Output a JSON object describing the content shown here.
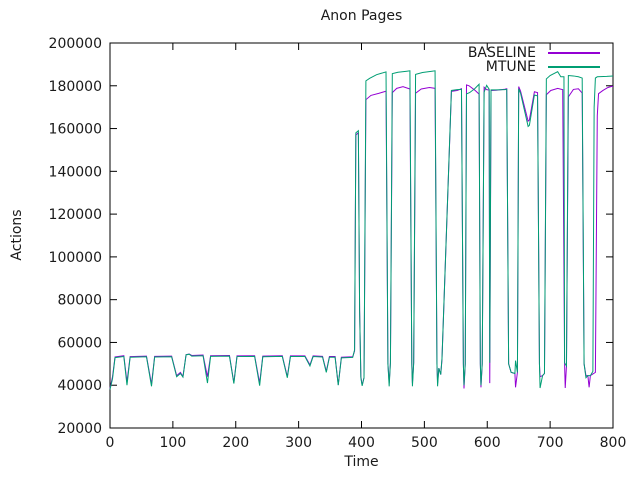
{
  "chart_data": {
    "type": "line",
    "title": "Anon Pages",
    "xlabel": "Time",
    "ylabel": "Actions",
    "xlim": [
      0,
      800
    ],
    "ylim": [
      20000,
      200000
    ],
    "x_ticks": [
      0,
      100,
      200,
      300,
      400,
      500,
      600,
      700,
      800
    ],
    "y_ticks": [
      20000,
      40000,
      60000,
      80000,
      100000,
      120000,
      140000,
      160000,
      180000,
      200000
    ],
    "grid": false,
    "legend_position": "top-right-inside",
    "axis_color": "#000000",
    "text_color": "#1a1a1a",
    "series": [
      {
        "name": "BASELINE",
        "color": "#9400D3",
        "points": [
          [
            0,
            38500
          ],
          [
            4,
            44000
          ],
          [
            8,
            53200
          ],
          [
            22,
            53800
          ],
          [
            27,
            41500
          ],
          [
            32,
            53400
          ],
          [
            58,
            53600
          ],
          [
            66,
            40500
          ],
          [
            71,
            53500
          ],
          [
            98,
            53600
          ],
          [
            106,
            44500
          ],
          [
            112,
            46000
          ],
          [
            116,
            44000
          ],
          [
            121,
            54300
          ],
          [
            126,
            54600
          ],
          [
            130,
            53900
          ],
          [
            148,
            54100
          ],
          [
            155,
            44000
          ],
          [
            160,
            53800
          ],
          [
            190,
            53900
          ],
          [
            197,
            41200
          ],
          [
            202,
            53700
          ],
          [
            230,
            53800
          ],
          [
            238,
            41000
          ],
          [
            243,
            53600
          ],
          [
            274,
            53800
          ],
          [
            282,
            44000
          ],
          [
            287,
            53700
          ],
          [
            310,
            53700
          ],
          [
            318,
            49500
          ],
          [
            323,
            53700
          ],
          [
            338,
            53500
          ],
          [
            344,
            46500
          ],
          [
            349,
            53400
          ],
          [
            358,
            53400
          ],
          [
            363,
            40200
          ],
          [
            368,
            53100
          ],
          [
            386,
            53300
          ],
          [
            389,
            56000
          ],
          [
            391,
            157000
          ],
          [
            395,
            158000
          ],
          [
            397,
            75000
          ],
          [
            399,
            44000
          ],
          [
            401,
            40000
          ],
          [
            404,
            43500
          ],
          [
            407,
            173500
          ],
          [
            415,
            175500
          ],
          [
            428,
            176500
          ],
          [
            439,
            177500
          ],
          [
            442,
            50000
          ],
          [
            444,
            41000
          ],
          [
            446,
            50500
          ],
          [
            449,
            176800
          ],
          [
            456,
            178800
          ],
          [
            466,
            179600
          ],
          [
            477,
            178500
          ],
          [
            480,
            50000
          ],
          [
            481,
            41000
          ],
          [
            483,
            50500
          ],
          [
            486,
            176500
          ],
          [
            495,
            178500
          ],
          [
            508,
            179200
          ],
          [
            517,
            178800
          ],
          [
            520,
            50000
          ],
          [
            521,
            41000
          ],
          [
            523,
            48000
          ],
          [
            526,
            45000
          ],
          [
            528,
            52000
          ],
          [
            543,
            177400
          ],
          [
            552,
            177800
          ],
          [
            559,
            178600
          ],
          [
            562,
            50000
          ],
          [
            563,
            38500
          ],
          [
            565,
            50000
          ],
          [
            567,
            180400
          ],
          [
            571,
            180000
          ],
          [
            580,
            178000
          ],
          [
            587,
            176100
          ],
          [
            589,
            50000
          ],
          [
            590,
            39000
          ],
          [
            592,
            50000
          ],
          [
            595,
            179300
          ],
          [
            599,
            178200
          ],
          [
            603,
            178000
          ],
          [
            604,
            41000
          ],
          [
            606,
            177800
          ],
          [
            614,
            177900
          ],
          [
            628,
            178400
          ],
          [
            631,
            178600
          ],
          [
            634,
            50000
          ],
          [
            638,
            46000
          ],
          [
            644,
            45500
          ],
          [
            645,
            39000
          ],
          [
            648,
            46000
          ],
          [
            650,
            179600
          ],
          [
            653,
            177500
          ],
          [
            665,
            163500
          ],
          [
            667,
            164000
          ],
          [
            675,
            177200
          ],
          [
            680,
            176800
          ],
          [
            683,
            50000
          ],
          [
            684,
            44000
          ],
          [
            688,
            44500
          ],
          [
            691,
            45500
          ],
          [
            694,
            175800
          ],
          [
            701,
            177800
          ],
          [
            712,
            178800
          ],
          [
            720,
            178200
          ],
          [
            723,
            50000
          ],
          [
            724,
            38700
          ],
          [
            726,
            49000
          ],
          [
            729,
            174800
          ],
          [
            737,
            178300
          ],
          [
            745,
            178600
          ],
          [
            751,
            176600
          ],
          [
            754,
            50000
          ],
          [
            757,
            44500
          ],
          [
            760,
            44500
          ],
          [
            762,
            39000
          ],
          [
            764,
            44500
          ],
          [
            772,
            46000
          ],
          [
            775,
            166000
          ],
          [
            777,
            176300
          ],
          [
            784,
            177800
          ],
          [
            792,
            179200
          ],
          [
            798,
            179700
          ],
          [
            800,
            179800
          ]
        ]
      },
      {
        "name": "MTUNE",
        "color": "#009E73",
        "points": [
          [
            0,
            38000
          ],
          [
            4,
            43000
          ],
          [
            8,
            52900
          ],
          [
            22,
            53400
          ],
          [
            27,
            40000
          ],
          [
            32,
            53100
          ],
          [
            58,
            53300
          ],
          [
            66,
            39500
          ],
          [
            71,
            53200
          ],
          [
            98,
            53300
          ],
          [
            106,
            44000
          ],
          [
            112,
            45500
          ],
          [
            116,
            43800
          ],
          [
            121,
            54200
          ],
          [
            126,
            54500
          ],
          [
            130,
            53600
          ],
          [
            148,
            53800
          ],
          [
            155,
            41000
          ],
          [
            160,
            53500
          ],
          [
            190,
            53600
          ],
          [
            197,
            40800
          ],
          [
            202,
            53400
          ],
          [
            230,
            53500
          ],
          [
            238,
            39800
          ],
          [
            243,
            53300
          ],
          [
            274,
            53500
          ],
          [
            282,
            43500
          ],
          [
            287,
            53400
          ],
          [
            310,
            53400
          ],
          [
            318,
            49000
          ],
          [
            323,
            53400
          ],
          [
            338,
            53200
          ],
          [
            344,
            46000
          ],
          [
            349,
            53100
          ],
          [
            358,
            53100
          ],
          [
            363,
            40000
          ],
          [
            368,
            52800
          ],
          [
            386,
            53000
          ],
          [
            389,
            56500
          ],
          [
            391,
            158000
          ],
          [
            395,
            159000
          ],
          [
            397,
            75000
          ],
          [
            399,
            43500
          ],
          [
            401,
            39700
          ],
          [
            404,
            43500
          ],
          [
            407,
            182300
          ],
          [
            413,
            183500
          ],
          [
            424,
            185200
          ],
          [
            439,
            186500
          ],
          [
            442,
            50000
          ],
          [
            444,
            39500
          ],
          [
            446,
            50500
          ],
          [
            449,
            185700
          ],
          [
            458,
            186300
          ],
          [
            472,
            186800
          ],
          [
            477,
            187000
          ],
          [
            480,
            50000
          ],
          [
            481,
            39500
          ],
          [
            483,
            50500
          ],
          [
            486,
            185300
          ],
          [
            497,
            186200
          ],
          [
            512,
            186800
          ],
          [
            517,
            187000
          ],
          [
            520,
            50000
          ],
          [
            521,
            39500
          ],
          [
            523,
            48000
          ],
          [
            526,
            45000
          ],
          [
            528,
            52500
          ],
          [
            543,
            177800
          ],
          [
            552,
            178200
          ],
          [
            559,
            178300
          ],
          [
            562,
            50000
          ],
          [
            563,
            40000
          ],
          [
            565,
            50000
          ],
          [
            567,
            176200
          ],
          [
            572,
            176800
          ],
          [
            580,
            178600
          ],
          [
            587,
            180700
          ],
          [
            589,
            50000
          ],
          [
            590,
            40000
          ],
          [
            592,
            50000
          ],
          [
            595,
            177000
          ],
          [
            599,
            180200
          ],
          [
            603,
            178400
          ],
          [
            604,
            50500
          ],
          [
            606,
            178100
          ],
          [
            614,
            178100
          ],
          [
            628,
            178200
          ],
          [
            631,
            178300
          ],
          [
            634,
            50000
          ],
          [
            638,
            46000
          ],
          [
            644,
            45500
          ],
          [
            645,
            51500
          ],
          [
            648,
            46000
          ],
          [
            650,
            178600
          ],
          [
            653,
            176500
          ],
          [
            665,
            161000
          ],
          [
            667,
            161500
          ],
          [
            675,
            175700
          ],
          [
            680,
            175300
          ],
          [
            683,
            50000
          ],
          [
            684,
            38700
          ],
          [
            688,
            44500
          ],
          [
            691,
            45500
          ],
          [
            694,
            183200
          ],
          [
            700,
            184800
          ],
          [
            712,
            186600
          ],
          [
            717,
            184200
          ],
          [
            722,
            184200
          ],
          [
            723,
            50500
          ],
          [
            726,
            49000
          ],
          [
            729,
            184800
          ],
          [
            737,
            184600
          ],
          [
            745,
            184200
          ],
          [
            751,
            183600
          ],
          [
            754,
            50000
          ],
          [
            757,
            43500
          ],
          [
            760,
            44500
          ],
          [
            762,
            44500
          ],
          [
            764,
            44500
          ],
          [
            768,
            46500
          ],
          [
            770,
            170000
          ],
          [
            772,
            183600
          ],
          [
            775,
            184200
          ],
          [
            790,
            184400
          ],
          [
            800,
            184600
          ]
        ]
      }
    ]
  }
}
